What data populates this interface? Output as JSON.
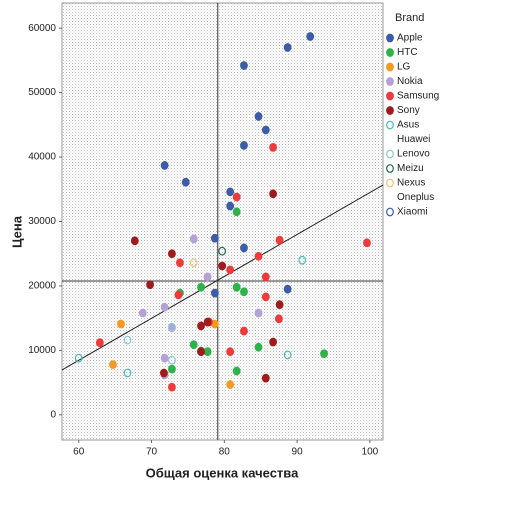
{
  "chart_data": {
    "type": "scatter",
    "x_label": "Общая оценка качества",
    "y_label": "Цена",
    "legend_title": "Brand",
    "xlim": [
      57.7,
      101.8
    ],
    "ylim": [
      -3900,
      63900
    ],
    "xticks": [
      60,
      70,
      80,
      90,
      100
    ],
    "yticks": [
      0,
      10000,
      20000,
      30000,
      40000,
      50000,
      60000
    ],
    "reference_lines": {
      "x": 79.1,
      "y": 20775
    },
    "fit_line": {
      "x": [
        57.7,
        101.8
      ],
      "y": [
        6977,
        35659
      ]
    },
    "legend": "right",
    "series": [
      {
        "name": "Apple",
        "color": "#3c5ca8",
        "filled": true,
        "x": [
          91.8,
          88.7,
          82.7,
          84.7,
          85.7,
          82.7,
          71.8,
          74.7,
          80.8,
          80.8,
          78.7,
          82.7,
          78.7,
          88.7
        ],
        "values": [
          58700,
          57000,
          54200,
          46300,
          44200,
          41800,
          38700,
          36100,
          34600,
          32400,
          27400,
          25900,
          18900,
          19500
        ]
      },
      {
        "name": "HTC",
        "color": "#2eb34a",
        "filled": true,
        "x": [
          81.7,
          73.9,
          76.8,
          82.7,
          81.7,
          75.8,
          76.8,
          77.7,
          93.7,
          84.7,
          72.8,
          81.7
        ],
        "values": [
          31500,
          18900,
          19800,
          19100,
          19800,
          10900,
          9900,
          9800,
          9500,
          10500,
          7100,
          6800
        ]
      },
      {
        "name": "LG",
        "color": "#f59a1f",
        "filled": true,
        "x": [
          65.8,
          78.7,
          64.7,
          80.8
        ],
        "values": [
          14100,
          14100,
          7800,
          4700
        ]
      },
      {
        "name": "Nokia",
        "color": "#b6a0d8",
        "filled": true,
        "x": [
          75.8,
          77.7,
          71.8,
          68.8,
          72.8,
          84.7,
          71.8,
          71.8
        ],
        "values": [
          27300,
          21400,
          16700,
          15800,
          13500,
          15800,
          8800,
          6200
        ]
      },
      {
        "name": "Samsung",
        "color": "#ee3a3a",
        "filled": true,
        "x": [
          86.7,
          81.7,
          87.6,
          99.6,
          84.7,
          73.9,
          80.8,
          85.7,
          73.7,
          85.7,
          82.7,
          77.9,
          62.9,
          80.8,
          72.8,
          87.5
        ],
        "values": [
          41500,
          33800,
          27100,
          26700,
          24600,
          23600,
          22500,
          21400,
          18600,
          18300,
          13000,
          14400,
          11200,
          9800,
          4300,
          14900
        ]
      },
      {
        "name": "Sony",
        "color": "#a01c1c",
        "filled": true,
        "x": [
          67.7,
          72.8,
          86.7,
          79.7,
          69.8,
          76.8,
          77.7,
          87.6,
          76.8,
          86.7,
          71.7,
          85.7
        ],
        "values": [
          27000,
          25000,
          34300,
          23100,
          20200,
          13800,
          14400,
          17100,
          9800,
          11300,
          6500,
          5700
        ]
      },
      {
        "name": "Asus",
        "color": "#4fb8b8",
        "filled": false,
        "x": [
          90.7,
          60.0,
          66.7,
          88.7
        ],
        "values": [
          24000,
          8800,
          6500,
          9300
        ]
      },
      {
        "name": "Huawei",
        "color": "#ffffff",
        "filled": false,
        "x": [],
        "values": []
      },
      {
        "name": "Lenovo",
        "color": "#8cc7d8",
        "filled": false,
        "x": [
          66.7,
          72.8,
          72.8
        ],
        "values": [
          11600,
          8500,
          13600
        ]
      },
      {
        "name": "Meizu",
        "color": "#1f6a4a",
        "filled": false,
        "x": [
          79.7
        ],
        "values": [
          25400
        ]
      },
      {
        "name": "Nexus",
        "color": "#f2c27a",
        "filled": false,
        "x": [
          75.8
        ],
        "values": [
          23600
        ]
      },
      {
        "name": "Oneplus",
        "color": "#ffffff",
        "filled": false,
        "x": [],
        "values": []
      },
      {
        "name": "Xiaomi",
        "color": "#3c5ca8",
        "filled": false,
        "x": [],
        "values": []
      }
    ]
  }
}
